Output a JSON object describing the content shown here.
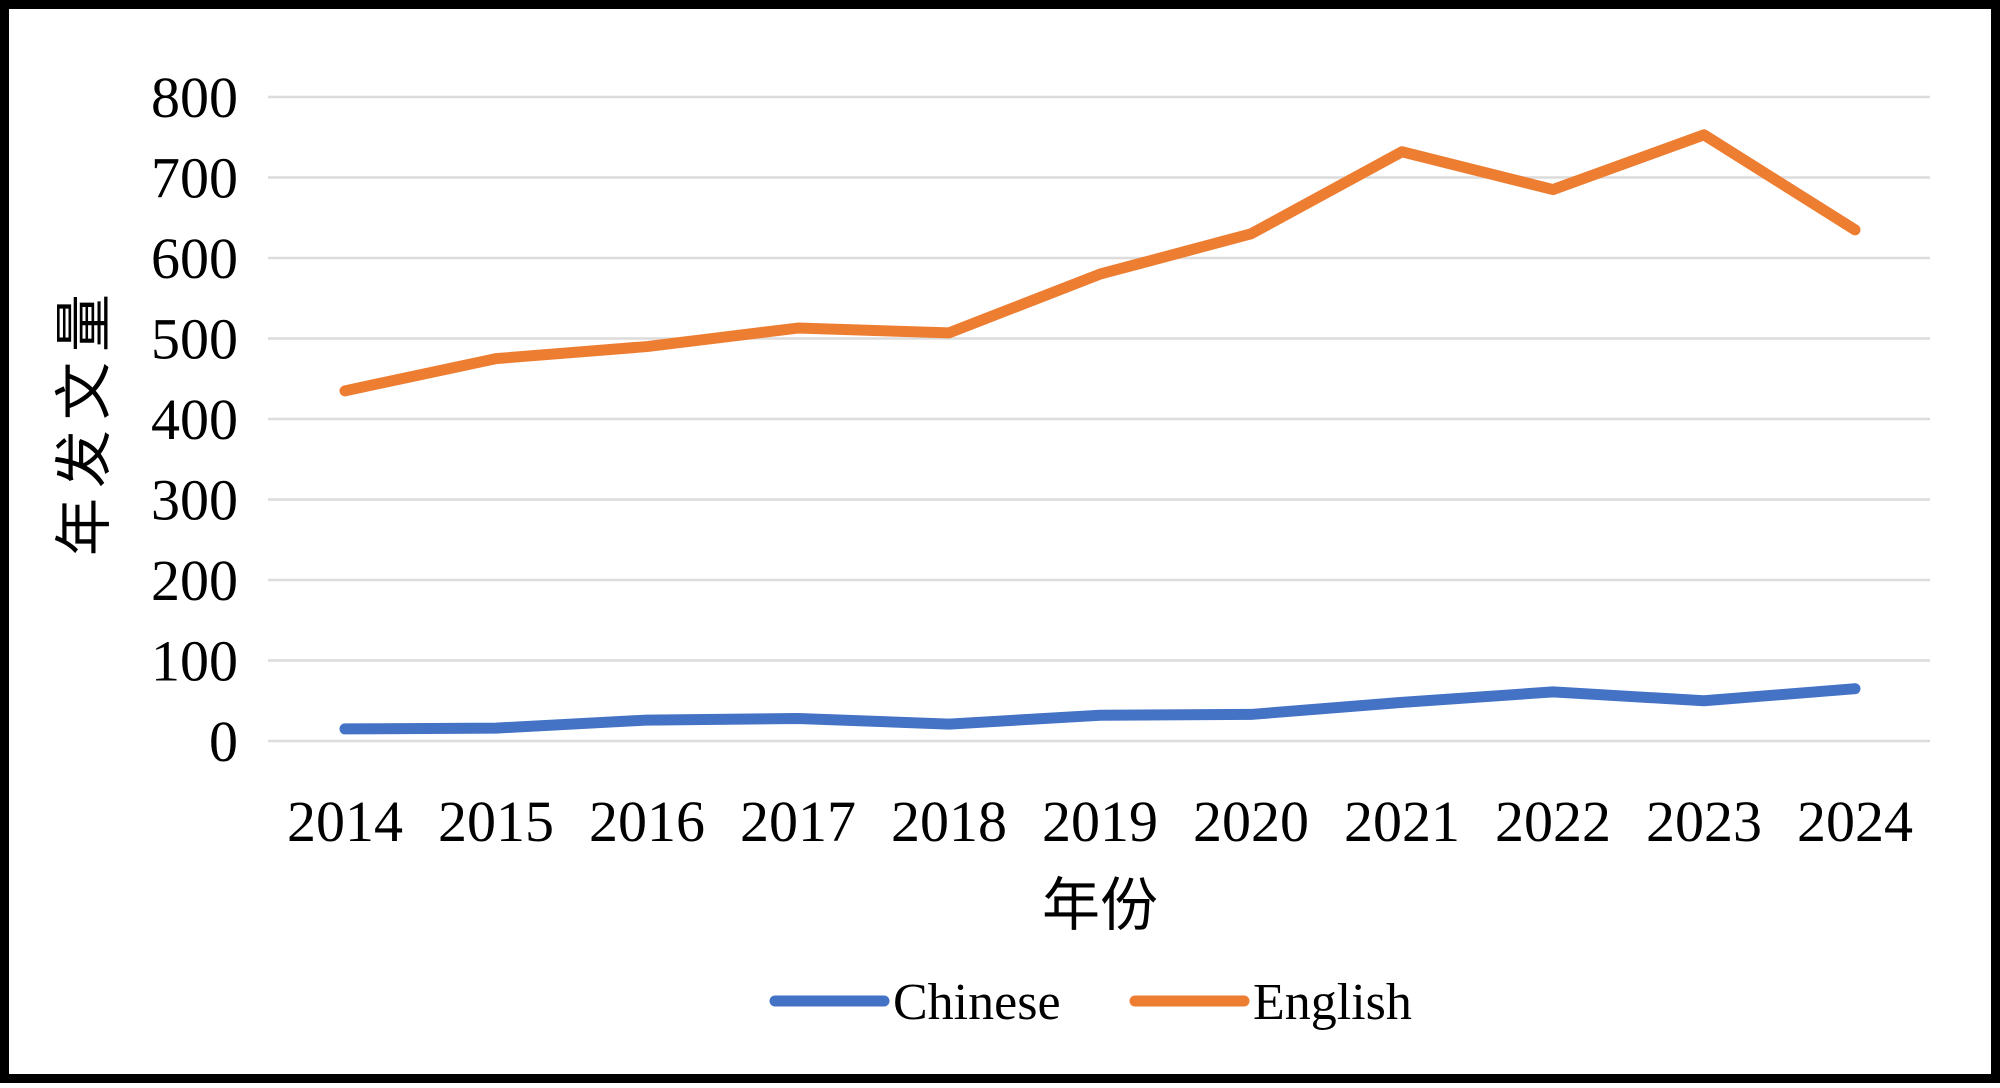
{
  "chart_data": {
    "type": "line",
    "title": "",
    "xlabel": "年份",
    "ylabel": "年发文量",
    "categories": [
      "2014",
      "2015",
      "2016",
      "2017",
      "2018",
      "2019",
      "2020",
      "2021",
      "2022",
      "2023",
      "2024"
    ],
    "series": [
      {
        "name": "Chinese",
        "color": "#4472C4",
        "values": [
          15,
          16,
          26,
          28,
          21,
          32,
          33,
          48,
          61,
          50,
          65
        ]
      },
      {
        "name": "English",
        "color": "#ED7D31",
        "values": [
          435,
          475,
          490,
          513,
          507,
          580,
          630,
          732,
          685,
          753,
          635
        ]
      }
    ],
    "ylim": [
      0,
      800
    ],
    "y_ticks": [
      0,
      100,
      200,
      300,
      400,
      500,
      600,
      700,
      800
    ],
    "grid": "horizontal gridlines on",
    "legend_position": "bottom"
  },
  "colors": {
    "gridline": "#DCDCDC",
    "text": "#000000",
    "frame_border": "#000000",
    "background": "#FFFFFF"
  }
}
